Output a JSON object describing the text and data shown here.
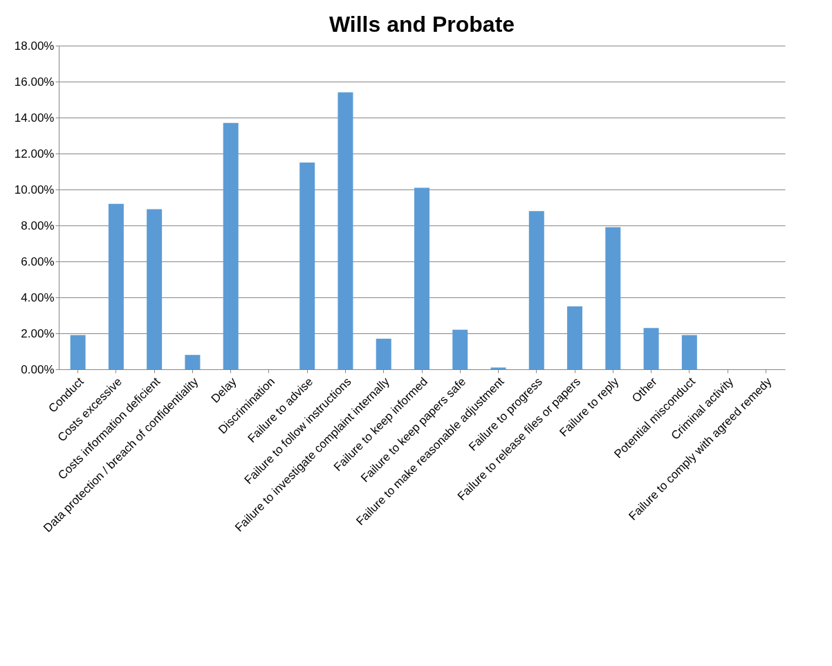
{
  "chart_data": {
    "type": "bar",
    "title": "Wills and Probate",
    "categories": [
      "Conduct",
      "Costs excessive",
      "Costs information deficient",
      "Data protection / breach of confidentiality",
      "Delay",
      "Discrimination",
      "Failure to advise",
      "Failure to follow instructions",
      "Failure to investigate complaint internally",
      "Failure to keep informed",
      "Failure to keep papers safe",
      "Failure to make reasonable adjustment",
      "Failure to progress",
      "Failure to release files or papers",
      "Failure to reply",
      "Other",
      "Potential misconduct",
      "Criminal activity",
      "Failure to comply with agreed remedy"
    ],
    "values": [
      1.9,
      9.2,
      8.9,
      0.8,
      13.7,
      0,
      11.5,
      15.4,
      1.7,
      10.1,
      2.2,
      0.1,
      8.8,
      3.5,
      7.9,
      2.3,
      1.9,
      0,
      0
    ],
    "color": "#5b9bd5",
    "ylim": [
      0,
      18
    ],
    "yticks": [
      {
        "value": 0,
        "label": "0.00%"
      },
      {
        "value": 2,
        "label": "2.00%"
      },
      {
        "value": 4,
        "label": "4.00%"
      },
      {
        "value": 6,
        "label": "6.00%"
      },
      {
        "value": 8,
        "label": "8.00%"
      },
      {
        "value": 10,
        "label": "10.00%"
      },
      {
        "value": 12,
        "label": "12.00%"
      },
      {
        "value": 14,
        "label": "14.00%"
      },
      {
        "value": 16,
        "label": "16.00%"
      },
      {
        "value": 18,
        "label": "18.00%"
      }
    ],
    "grid": "y"
  }
}
